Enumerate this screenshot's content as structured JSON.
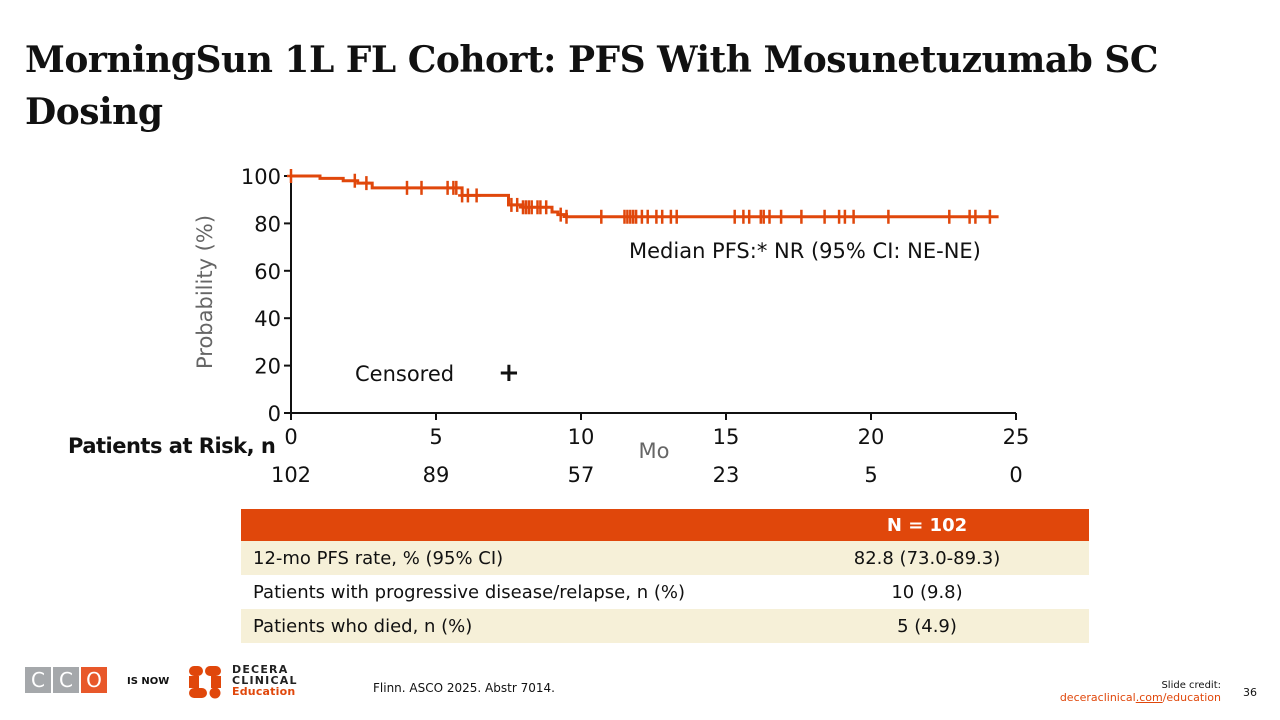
{
  "slide": {
    "title": "MorningSun 1L FL Cohort: PFS With Mosunetuzumab SC Dosing",
    "page_number": "36"
  },
  "chart_data": {
    "type": "line",
    "title": "",
    "xlabel": "Mo",
    "ylabel": "Probability (%)",
    "xlim": [
      0,
      25
    ],
    "ylim": [
      0,
      100
    ],
    "x_ticks": [
      "0",
      "5",
      "10",
      "15",
      "20",
      "25"
    ],
    "y_ticks": [
      "0",
      "20",
      "40",
      "60",
      "80",
      "100"
    ],
    "x_tick_values": [
      0,
      5,
      10,
      15,
      20,
      25
    ],
    "y_tick_values": [
      0,
      20,
      40,
      60,
      80,
      100
    ],
    "grid": false,
    "series": [
      {
        "name": "PFS",
        "color": "#e0470b",
        "step_x": [
          0,
          1.0,
          1.8,
          2.3,
          2.8,
          5.9,
          7.5,
          8.0,
          9.0,
          9.2,
          9.5,
          24.4
        ],
        "step_y": [
          100,
          99.0,
          98.0,
          97.0,
          95.0,
          91.8,
          87.8,
          86.8,
          84.8,
          83.7,
          82.8,
          82.8
        ],
        "censored_x": [
          0,
          2.2,
          2.6,
          4.0,
          4.5,
          5.4,
          5.6,
          5.7,
          5.9,
          6.1,
          6.4,
          7.6,
          7.8,
          8.0,
          8.1,
          8.2,
          8.3,
          8.5,
          8.6,
          8.8,
          9.3,
          9.5,
          10.7,
          11.5,
          11.6,
          11.7,
          11.8,
          11.9,
          12.1,
          12.3,
          12.6,
          12.8,
          13.1,
          13.3,
          15.3,
          15.6,
          15.8,
          16.2,
          16.3,
          16.5,
          16.9,
          17.6,
          18.4,
          18.9,
          19.1,
          19.4,
          20.6,
          22.7,
          23.4,
          23.6,
          24.1
        ]
      }
    ],
    "annotations": {
      "median": "Median PFS:* NR (95% CI: NE-NE)",
      "censored_legend": "Censored",
      "censored_symbol": "+"
    },
    "risk_table": {
      "title": "Patients at Risk, n",
      "x": [
        0,
        5,
        10,
        15,
        20,
        25
      ],
      "values": [
        "102",
        "89",
        "57",
        "23",
        "5",
        "0"
      ]
    }
  },
  "summary_table": {
    "header": "N = 102",
    "rows": [
      {
        "label": "12-mo PFS rate, % (95% CI)",
        "value": "82.8 (73.0-89.3)"
      },
      {
        "label": "Patients with progressive disease/relapse, n (%)",
        "value": "10 (9.8)"
      },
      {
        "label": "Patients who died, n (%)",
        "value": "5 (4.9)"
      }
    ]
  },
  "footer": {
    "cco_letters": [
      "C",
      "C",
      "O"
    ],
    "is_now": "IS NOW",
    "decera_line1": "DECERA",
    "decera_line2": "CLINICAL",
    "decera_line3": "Education",
    "source": "Flinn. ASCO 2025. Abstr 7014.",
    "credit_label": "Slide credit:",
    "credit_link_a": "deceraclinical",
    "credit_link_b": ".com",
    "credit_link_c": "/education"
  },
  "colors": {
    "accent": "#e0470b",
    "table_stripe": "#f6f0d8",
    "cco_grey": "#a5a8ab"
  }
}
